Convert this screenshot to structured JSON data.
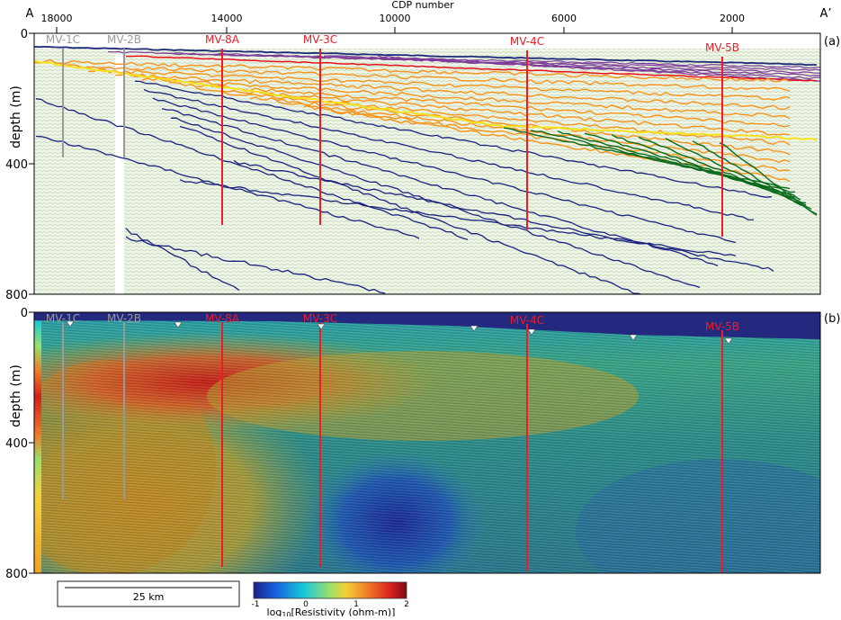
{
  "x_axis": {
    "title": "CDP number",
    "ticks": [
      "18000",
      "14000",
      "10000",
      "6000",
      "2000"
    ],
    "end_left": "A",
    "end_right": "A’"
  },
  "y_axis": {
    "title": "depth (m)",
    "ticks": [
      "0",
      "400",
      "800"
    ]
  },
  "panels": [
    {
      "label": "(a)"
    },
    {
      "label": "(b)"
    }
  ],
  "wells": [
    {
      "name": "MV-1C",
      "color": "#9a9a9a"
    },
    {
      "name": "MV-2B",
      "color": "#9a9a9a"
    },
    {
      "name": "MV-8A",
      "color": "#ee1c25"
    },
    {
      "name": "MV-3C",
      "color": "#ee1c25"
    },
    {
      "name": "MV-4C",
      "color": "#ee1c25"
    },
    {
      "name": "MV-5B",
      "color": "#ee1c25"
    }
  ],
  "horizon_colors": {
    "seafloor": "#1f2a78",
    "purple": "#7d3c98",
    "red": "#e8141c",
    "orange": "#f7941d",
    "yellow": "#f5e21c",
    "blue": "#1a237e",
    "green": "#0b6b1e"
  },
  "scale_bar": {
    "label": "25 km"
  },
  "colorbar": {
    "ticks": [
      "-1",
      "0",
      "1",
      "2"
    ],
    "label_prefix": "log",
    "label_sub": "10",
    "label_rest": "[Resistivity (ohm-m)]",
    "colors": [
      "#1b1f8a",
      "#1565e0",
      "#19c9d8",
      "#9be06a",
      "#f3d23a",
      "#f07a26",
      "#d61f1f",
      "#7a0f0f"
    ]
  }
}
